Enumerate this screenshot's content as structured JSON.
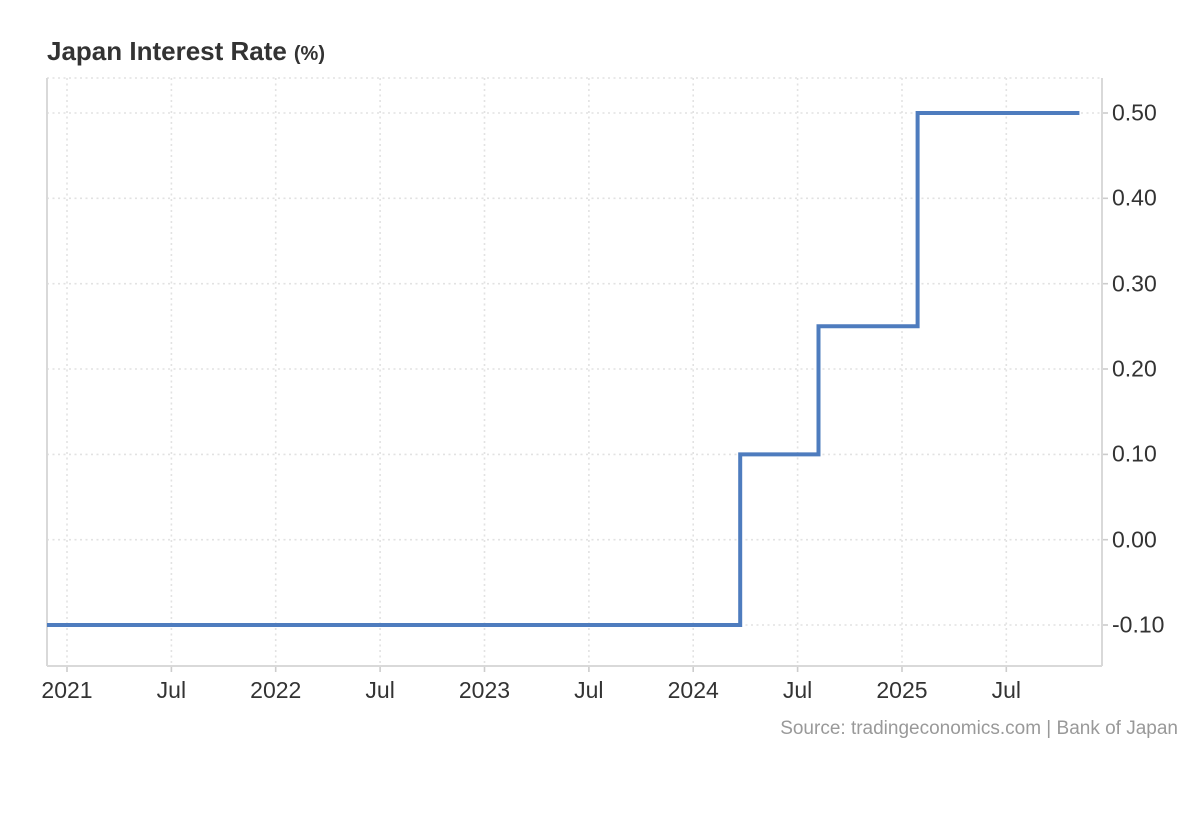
{
  "page": {
    "background": "#ffffff"
  },
  "header": {
    "title": "Japan Interest Rate",
    "unit": "(%)"
  },
  "footer": {
    "source": "Source: tradingeconomics.com | Bank of Japan"
  },
  "chart_data": {
    "type": "line",
    "subtype": "step",
    "title": "Japan Interest Rate (%)",
    "xlabel": "",
    "ylabel": "%",
    "grid": "dotted",
    "legend": "none",
    "series": [
      {
        "name": "Japan Interest Rate",
        "unit": "%",
        "observations": [
          {
            "period": "chart start (late 2020)",
            "value": -0.1
          },
          {
            "period": "Mar 2024",
            "value": 0.1
          },
          {
            "period": "Aug 2024",
            "value": 0.25
          },
          {
            "period": "Jan 2025",
            "value": 0.5
          },
          {
            "period": "chart end (late 2025)",
            "value": 0.5
          }
        ]
      }
    ],
    "line_points_months_vs_value": [
      [
        -1.15,
        -0.1
      ],
      [
        38.7,
        -0.1
      ],
      [
        38.7,
        0.1
      ],
      [
        43.2,
        0.1
      ],
      [
        43.2,
        0.25
      ],
      [
        48.9,
        0.25
      ],
      [
        48.9,
        0.5
      ],
      [
        58.2,
        0.5
      ]
    ],
    "x_domain_months_since_jan2021": [
      -1.15,
      59.5
    ],
    "y_domain": [
      -0.148,
      0.541
    ],
    "x_ticks": [
      {
        "m": 0,
        "label": "2021"
      },
      {
        "m": 6,
        "label": "Jul"
      },
      {
        "m": 12,
        "label": "2022"
      },
      {
        "m": 18,
        "label": "Jul"
      },
      {
        "m": 24,
        "label": "2023"
      },
      {
        "m": 30,
        "label": "Jul"
      },
      {
        "m": 36,
        "label": "2024"
      },
      {
        "m": 42,
        "label": "Jul"
      },
      {
        "m": 48,
        "label": "2025"
      },
      {
        "m": 54,
        "label": "Jul"
      }
    ],
    "y_ticks": [
      {
        "v": 0.5,
        "label": "0.50"
      },
      {
        "v": 0.4,
        "label": "0.40"
      },
      {
        "v": 0.3,
        "label": "0.30"
      },
      {
        "v": 0.2,
        "label": "0.20"
      },
      {
        "v": 0.1,
        "label": "0.10"
      },
      {
        "v": 0.0,
        "label": "0.00"
      },
      {
        "v": -0.1,
        "label": "-0.10"
      }
    ],
    "colors": {
      "line": "#4e7cbe",
      "grid": "#e2e2e2",
      "border": "#d9d9d9",
      "tick": "#cccccc",
      "axis_text": "#333333",
      "title_text": "#333333",
      "source_text": "#999999"
    }
  }
}
